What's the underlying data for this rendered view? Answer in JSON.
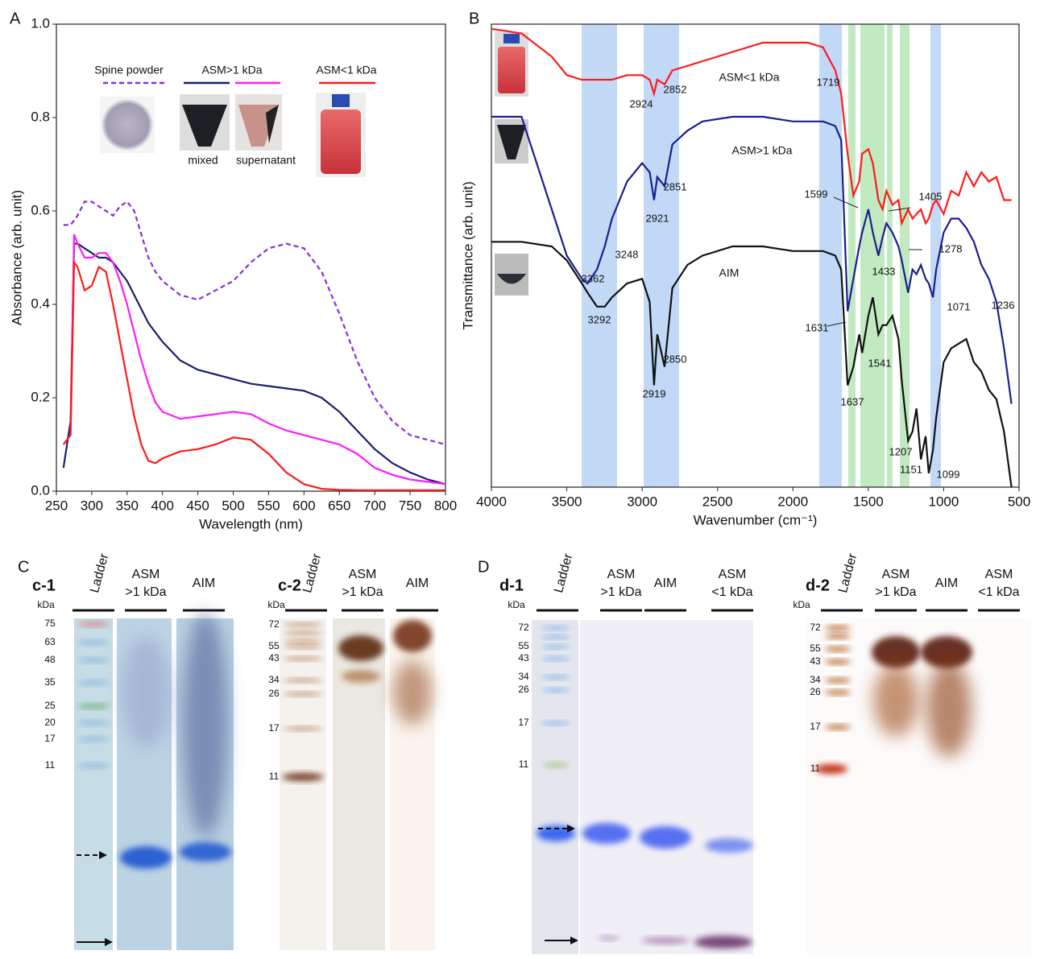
{
  "chart_data": [
    {
      "type": "line",
      "panel": "A",
      "xlabel": "Wavelength (nm)",
      "ylabel": "Absorbance (arb. unit)",
      "legend_group": "ASM>1 kDa",
      "x": [
        260,
        270,
        275,
        280,
        290,
        300,
        310,
        320,
        330,
        340,
        350,
        360,
        370,
        380,
        390,
        400,
        425,
        450,
        475,
        500,
        525,
        550,
        575,
        600,
        625,
        650,
        675,
        700,
        725,
        750,
        775,
        800
      ],
      "series": [
        {
          "name": "Spine powder",
          "color": "#8a2be2",
          "dashed": true,
          "values": [
            0.57,
            0.57,
            0.58,
            0.59,
            0.62,
            0.62,
            0.61,
            0.6,
            0.59,
            0.61,
            0.62,
            0.6,
            0.55,
            0.5,
            0.47,
            0.45,
            0.42,
            0.41,
            0.43,
            0.45,
            0.49,
            0.52,
            0.53,
            0.52,
            0.47,
            0.38,
            0.28,
            0.2,
            0.15,
            0.12,
            0.11,
            0.1
          ]
        },
        {
          "name": "mixed",
          "color": "#1a1f6e",
          "dashed": false,
          "values": [
            0.05,
            0.15,
            0.53,
            0.53,
            0.52,
            0.51,
            0.5,
            0.5,
            0.49,
            0.47,
            0.45,
            0.42,
            0.39,
            0.36,
            0.34,
            0.32,
            0.28,
            0.26,
            0.25,
            0.24,
            0.23,
            0.225,
            0.22,
            0.215,
            0.2,
            0.17,
            0.13,
            0.09,
            0.06,
            0.04,
            0.025,
            0.015
          ]
        },
        {
          "name": "supernatant",
          "color": "#ff1aff",
          "dashed": false,
          "values": [
            0.1,
            0.12,
            0.55,
            0.53,
            0.5,
            0.5,
            0.51,
            0.51,
            0.49,
            0.45,
            0.4,
            0.34,
            0.28,
            0.23,
            0.19,
            0.17,
            0.155,
            0.16,
            0.165,
            0.17,
            0.165,
            0.145,
            0.13,
            0.12,
            0.11,
            0.1,
            0.08,
            0.05,
            0.035,
            0.025,
            0.02,
            0.015
          ]
        },
        {
          "name": "ASM<1 kDa",
          "color": "#ff1a1a",
          "dashed": false,
          "values": [
            0.1,
            0.12,
            0.49,
            0.48,
            0.43,
            0.44,
            0.48,
            0.47,
            0.4,
            0.32,
            0.24,
            0.16,
            0.1,
            0.065,
            0.06,
            0.07,
            0.085,
            0.09,
            0.1,
            0.115,
            0.11,
            0.08,
            0.04,
            0.015,
            0.005,
            0.003,
            0.002,
            0.002,
            0.002,
            0.002,
            0.002,
            0.002
          ]
        }
      ],
      "xlim": [
        250,
        800
      ],
      "xticks": [
        250,
        300,
        350,
        400,
        450,
        500,
        550,
        600,
        650,
        700,
        750,
        800
      ],
      "ylim": [
        0,
        1
      ],
      "yticks": [
        {
          "value": 0,
          "label": "0.0"
        },
        0.2,
        0.4,
        0.6,
        0.8,
        {
          "value": 1,
          "label": "1.0"
        }
      ]
    },
    {
      "type": "line",
      "panel": "B",
      "xlabel": "Wavenumber (cm⁻¹)",
      "ylabel": "Transmittance (arb. unit)",
      "x": [
        4000,
        3800,
        3600,
        3500,
        3400,
        3362,
        3300,
        3248,
        3200,
        3100,
        3000,
        2950,
        2921,
        2900,
        2851,
        2800,
        2700,
        2600,
        2400,
        2200,
        2000,
        1900,
        1800,
        1719,
        1680,
        1637,
        1599,
        1560,
        1541,
        1500,
        1470,
        1433,
        1405,
        1380,
        1340,
        1300,
        1278,
        1236,
        1207,
        1180,
        1151,
        1120,
        1099,
        1071,
        1050,
        1000,
        950,
        900,
        850,
        800,
        750,
        700,
        650,
        600,
        550
      ],
      "series": [
        {
          "name": "ASM<1 kDa",
          "color": "#ff1a1a",
          "values": [
            99,
            98,
            93,
            89,
            88,
            88,
            88,
            88,
            88,
            89,
            89,
            88,
            85,
            88,
            87,
            90,
            91,
            92,
            94,
            96,
            96,
            96,
            95,
            90,
            85,
            72,
            63,
            66,
            72,
            73,
            70,
            62,
            60,
            64,
            61,
            62,
            57,
            60,
            58,
            59,
            60,
            57,
            58,
            61,
            62,
            59,
            64,
            63,
            68,
            65,
            68,
            66,
            67,
            62,
            62
          ]
        },
        {
          "name": "ASM>1 kDa",
          "color": "#1a1f8e",
          "values": [
            80,
            80,
            60,
            50,
            45,
            44,
            47,
            52,
            58,
            66,
            70,
            68,
            62,
            67,
            65,
            74,
            77,
            79,
            80,
            80,
            79,
            79,
            79,
            78,
            75,
            38,
            45,
            52,
            55,
            60,
            55,
            50,
            54,
            57,
            55,
            52,
            49,
            42,
            47,
            46,
            48,
            45,
            44,
            41,
            47,
            55,
            58,
            58,
            56,
            53,
            48,
            45,
            40,
            30,
            18
          ]
        },
        {
          "name": "AIM",
          "color": "#111111",
          "values": [
            53,
            53,
            52,
            49,
            44,
            42,
            39,
            39,
            41,
            44,
            45,
            40,
            22,
            33,
            26,
            43,
            48,
            50,
            52,
            52,
            51,
            51,
            51,
            50,
            47,
            22,
            26,
            33,
            29,
            37,
            41,
            33,
            35,
            35,
            37,
            32,
            23,
            10,
            12,
            17,
            6,
            11,
            3,
            8,
            15,
            27,
            30,
            31,
            32,
            27,
            25,
            21,
            19,
            12,
            0
          ]
        }
      ],
      "annotations": [
        "2924",
        "2852",
        "1719",
        "2921",
        "2851",
        "3362",
        "3248",
        "1599",
        "1405",
        "1433",
        "1278",
        "1236",
        "1071",
        "3292",
        "2919",
        "2850",
        "1631",
        "1637",
        "1541",
        "1207",
        "1151",
        "1099"
      ],
      "xlim": [
        4000,
        500
      ],
      "xticks": [
        4000,
        3500,
        3000,
        2500,
        2000,
        1500,
        1000,
        500
      ],
      "ylim": [
        0,
        100
      ]
    }
  ],
  "gels": {
    "C": {
      "letter": "C",
      "panels": [
        {
          "title": "c-1",
          "unit": "kDa",
          "lanes": [
            [
              "Ladder"
            ],
            [
              "ASM",
              ">1 kDa"
            ],
            [
              "AIM"
            ]
          ],
          "markers": [
            "75",
            "63",
            "48",
            "35",
            "25",
            "20",
            "17",
            "11"
          ]
        },
        {
          "title": "c-2",
          "unit": "kDa",
          "lanes": [
            [
              "Ladder"
            ],
            [
              "ASM",
              ">1 kDa"
            ],
            [
              "AIM"
            ]
          ],
          "markers": [
            "72",
            "55",
            "43",
            "34",
            "26",
            "17",
            "11"
          ]
        }
      ]
    },
    "D": {
      "letter": "D",
      "panels": [
        {
          "title": "d-1",
          "unit": "kDa",
          "lanes": [
            [
              "Ladder"
            ],
            [
              "ASM",
              ">1 kDa"
            ],
            [
              "AIM"
            ],
            [
              "ASM",
              "<1 kDa"
            ]
          ],
          "markers": [
            "72",
            "55",
            "43",
            "34",
            "26",
            "17",
            "11"
          ]
        },
        {
          "title": "d-2",
          "unit": "kDa",
          "lanes": [
            [
              "Ladder"
            ],
            [
              "ASM",
              ">1 kDa"
            ],
            [
              "AIM"
            ],
            [
              "ASM",
              "<1 kDa"
            ]
          ],
          "markers": [
            "72",
            "55",
            "43",
            "34",
            "26",
            "17",
            "11"
          ]
        }
      ]
    }
  }
}
